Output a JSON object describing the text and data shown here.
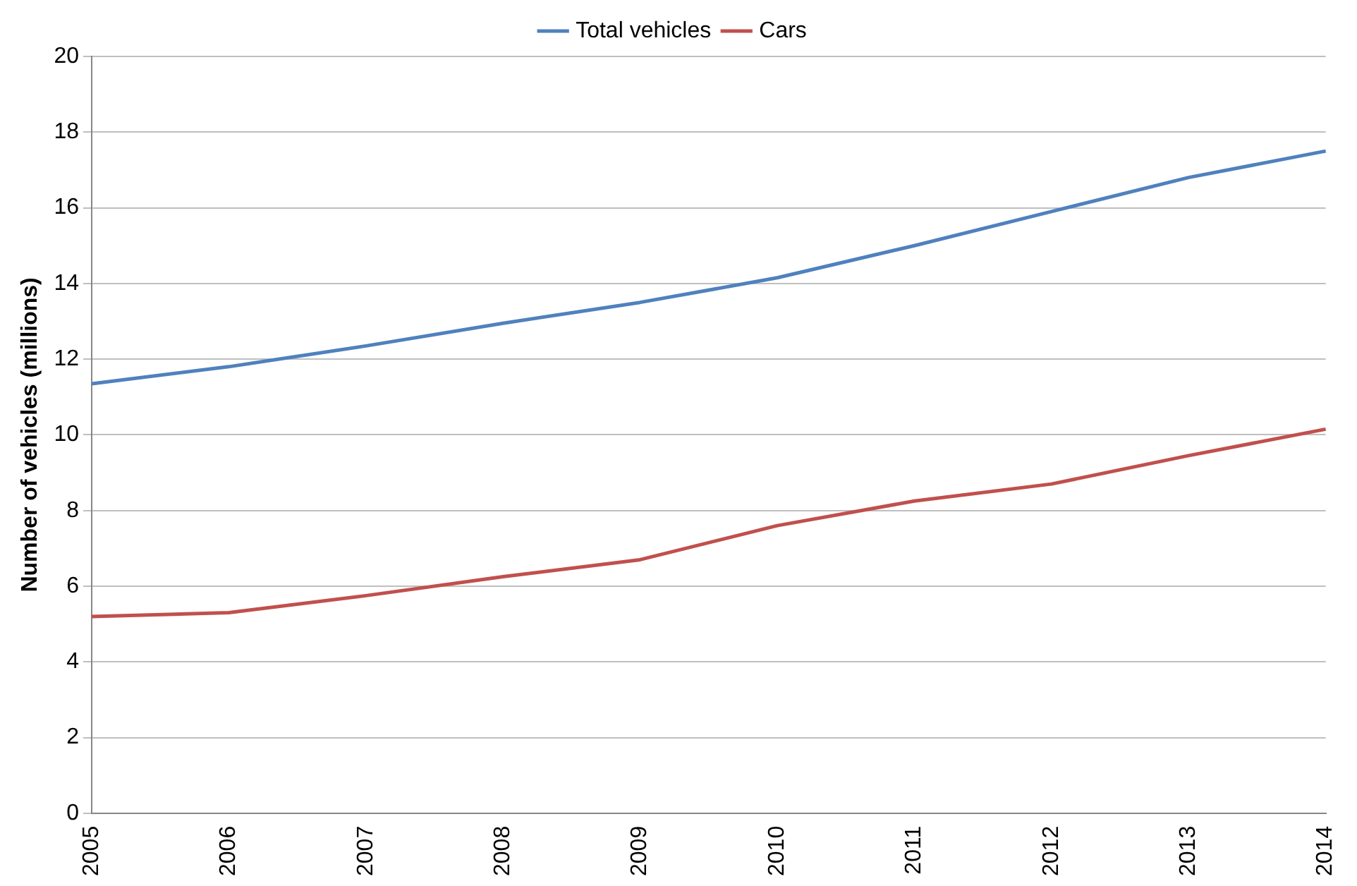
{
  "chart_data": {
    "type": "line",
    "ylabel": "Number of vehicles (millions)",
    "categories": [
      "2005",
      "2006",
      "2007",
      "2008",
      "2009",
      "2010",
      "2011",
      "2012",
      "2013",
      "2014"
    ],
    "series": [
      {
        "name": "Total vehicles",
        "color": "#4f81bd",
        "values": [
          11.35,
          11.8,
          12.35,
          12.95,
          13.5,
          14.15,
          15.0,
          15.9,
          16.8,
          17.5
        ]
      },
      {
        "name": "Cars",
        "color": "#c0504d",
        "values": [
          5.2,
          5.3,
          5.75,
          6.25,
          6.7,
          7.6,
          8.25,
          8.7,
          9.45,
          10.15
        ]
      }
    ],
    "ylim": [
      0,
      20
    ],
    "yticks": [
      0,
      2,
      4,
      6,
      8,
      10,
      12,
      14,
      16,
      18,
      20
    ],
    "grid": "y",
    "legend": "top",
    "marker": "none",
    "line_style": "solid"
  }
}
